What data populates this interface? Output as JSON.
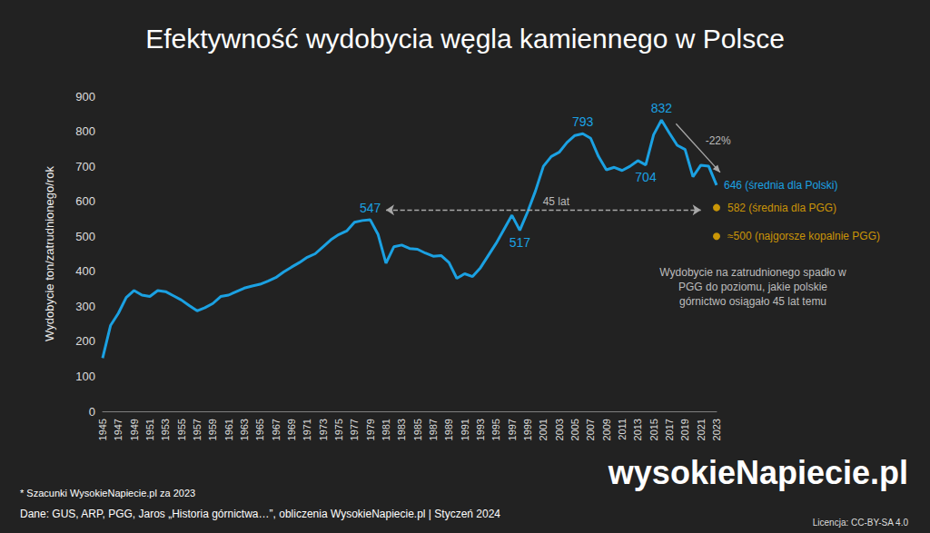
{
  "chart_data": {
    "type": "line",
    "title": "Efektywność wydobycia węgla kamiennego w Polsce",
    "y_label": "Wydobycie ton/zatrudnionego/rok",
    "categories": [
      "1945",
      null,
      "1947",
      null,
      "1949",
      null,
      "1951",
      null,
      "1953",
      null,
      "1955",
      null,
      "1957",
      null,
      "1959",
      null,
      "1961",
      null,
      "1963",
      null,
      "1965",
      null,
      "1967",
      null,
      "1969",
      null,
      "1971",
      null,
      "1973",
      null,
      "1975",
      null,
      "1977",
      null,
      "1979",
      null,
      "1981",
      null,
      "1983",
      null,
      "1985",
      null,
      "1987",
      null,
      "1989",
      null,
      "1991",
      null,
      "1993",
      null,
      "1995",
      null,
      "1997",
      null,
      "1999",
      null,
      "2001",
      null,
      "2003",
      null,
      "2005",
      null,
      "2007",
      null,
      "2009",
      null,
      "2011",
      null,
      "2013",
      null,
      "2015",
      null,
      "2017",
      null,
      "2019",
      null,
      "2021",
      null,
      "2023"
    ],
    "series": [
      {
        "type": "line",
        "color": "#1ba1e2",
        "line_style": "solid",
        "values": [
          152,
          245,
          280,
          325,
          345,
          332,
          328,
          345,
          342,
          330,
          318,
          302,
          287,
          296,
          308,
          328,
          332,
          342,
          352,
          358,
          363,
          372,
          382,
          398,
          412,
          425,
          440,
          450,
          470,
          490,
          505,
          515,
          540,
          545,
          547,
          505,
          423,
          470,
          475,
          465,
          463,
          452,
          443,
          445,
          425,
          380,
          393,
          385,
          410,
          445,
          480,
          520,
          560,
          517,
          570,
          630,
          700,
          728,
          740,
          768,
          788,
          793,
          780,
          728,
          690,
          697,
          688,
          700,
          716,
          704,
          790,
          832,
          795,
          760,
          748,
          670,
          703,
          700,
          646
        ],
        "value_labels": [
          null,
          null,
          null,
          null,
          null,
          null,
          null,
          null,
          null,
          null,
          null,
          null,
          null,
          null,
          null,
          null,
          null,
          null,
          null,
          null,
          null,
          null,
          null,
          null,
          null,
          null,
          null,
          null,
          null,
          null,
          null,
          null,
          null,
          null,
          "547",
          null,
          null,
          null,
          null,
          null,
          null,
          null,
          null,
          null,
          null,
          null,
          null,
          null,
          null,
          null,
          null,
          null,
          null,
          "517",
          null,
          null,
          null,
          null,
          null,
          null,
          null,
          "793",
          null,
          null,
          null,
          null,
          null,
          null,
          null,
          "704",
          null,
          "832",
          null,
          null,
          null,
          null,
          null,
          null,
          "646 (średnia dla Polski)"
        ]
      },
      {
        "type": "scatter",
        "color": "#f5b400",
        "marker": "circle",
        "x": [
          "2023",
          "2023"
        ],
        "values": [
          582,
          500
        ],
        "value_labels": [
          "582 (średnia dla PGG)",
          "≈500 (najgorsze kopalnie PGG)"
        ]
      }
    ],
    "ylim": [
      0,
      900
    ],
    "yticks": [
      0,
      100,
      200,
      300,
      400,
      500,
      600,
      700,
      800,
      900
    ],
    "grid": false,
    "data_labels": true,
    "annotations": [
      {
        "text": "-22%",
        "from_value": 832,
        "to_value": 646
      },
      {
        "text": "45 lat",
        "x_from": "1981",
        "x_to": "2021",
        "y": 575
      }
    ],
    "note": "Wydobycie na zatrudnionego spadło w PGG do poziomu, jakie polskie górnictwo osiągało 45 lat temu",
    "footnote": "* Szacunki WysokieNapiecie.pl za 2023",
    "source": "Dane: GUS, ARP, PGG, Jaros „Historia górnictwa…”, obliczenia WysokieNapiecie.pl | Styczeń 2024",
    "logo": "wysokieNapiecie.pl",
    "license": "Licencja: CC-BY-SA 4.0"
  }
}
